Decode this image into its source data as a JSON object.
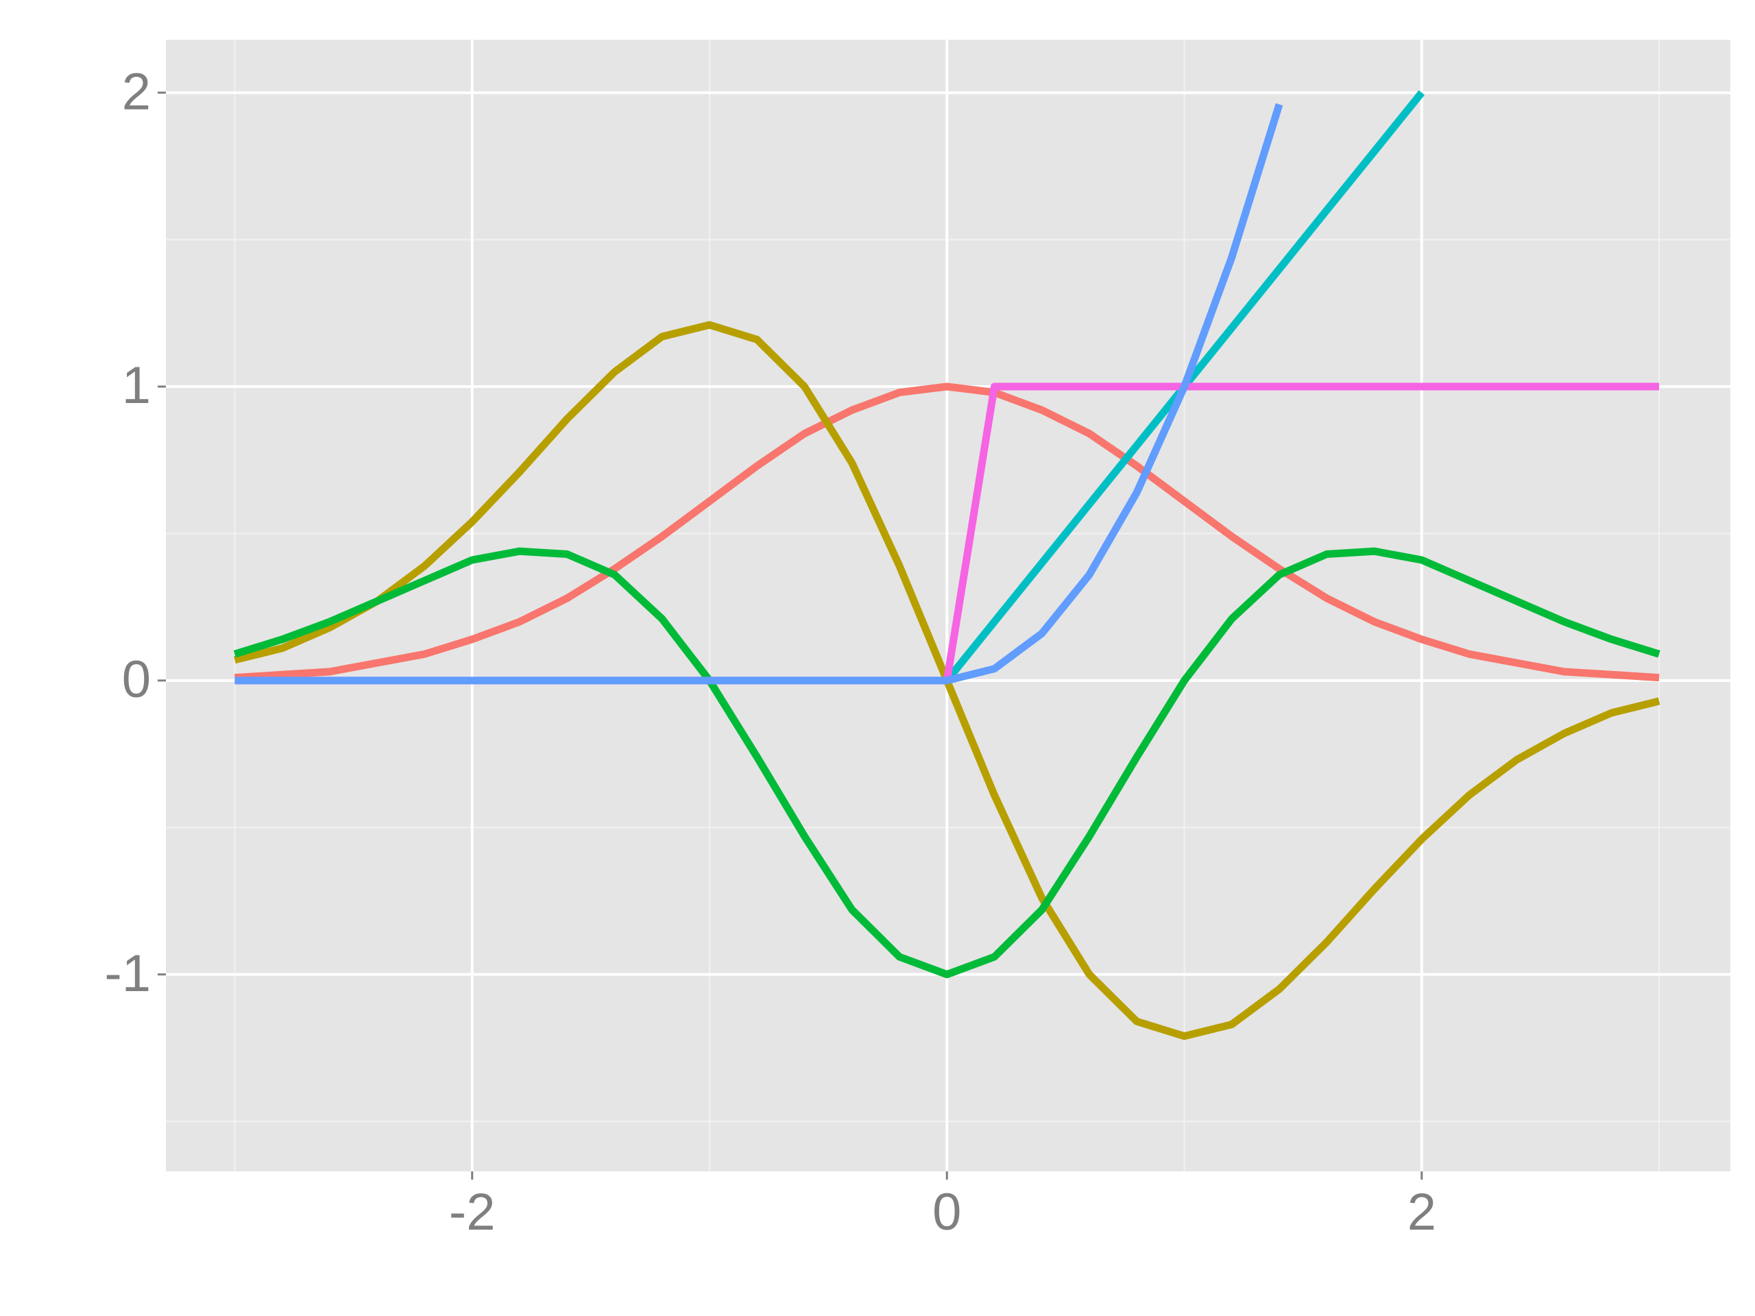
{
  "chart_data": {
    "type": "line",
    "x": [
      -3,
      -2.8,
      -2.6,
      -2.4,
      -2.2,
      -2,
      -1.8,
      -1.6,
      -1.4,
      -1.2,
      -1,
      -0.8,
      -0.6,
      -0.4,
      -0.2,
      0,
      0.2,
      0.4,
      0.6,
      0.8,
      1,
      1.2,
      1.4,
      1.6,
      1.8,
      2,
      2.2,
      2.4,
      2.6,
      2.8,
      3
    ],
    "series": [
      {
        "color": "#F8766D",
        "values": [
          0.01,
          0.02,
          0.03,
          0.06,
          0.09,
          0.14,
          0.2,
          0.28,
          0.38,
          0.49,
          0.61,
          0.73,
          0.84,
          0.92,
          0.98,
          1,
          0.98,
          0.92,
          0.84,
          0.73,
          0.61,
          0.49,
          0.38,
          0.28,
          0.2,
          0.14,
          0.09,
          0.06,
          0.03,
          0.02,
          0.01
        ]
      },
      {
        "color": "#B79F00",
        "values": [
          0.07,
          0.11,
          0.18,
          0.27,
          0.39,
          0.54,
          0.71,
          0.89,
          1.05,
          1.17,
          1.21,
          1.16,
          1,
          0.74,
          0.39,
          0,
          -0.39,
          -0.74,
          -1,
          -1.16,
          -1.21,
          -1.17,
          -1.05,
          -0.89,
          -0.71,
          -0.54,
          -0.39,
          -0.27,
          -0.18,
          -0.11,
          -0.07
        ]
      },
      {
        "color": "#00BA38",
        "values": [
          0.09,
          0.14,
          0.2,
          0.27,
          0.34,
          0.41,
          0.44,
          0.43,
          0.36,
          0.21,
          0,
          -0.26,
          -0.53,
          -0.78,
          -0.94,
          -1,
          -0.94,
          -0.78,
          -0.53,
          -0.26,
          0,
          0.21,
          0.36,
          0.43,
          0.44,
          0.41,
          0.34,
          0.27,
          0.2,
          0.14,
          0.09
        ]
      },
      {
        "color": "#00BFC4",
        "values": [
          null,
          null,
          null,
          null,
          null,
          null,
          null,
          null,
          null,
          null,
          null,
          null,
          null,
          null,
          null,
          0,
          0.2,
          0.4,
          0.6,
          0.8,
          1,
          1.2,
          1.4,
          1.6,
          1.8,
          2,
          null,
          null,
          null,
          null,
          null
        ]
      },
      {
        "color": "#F564E3",
        "values": [
          0,
          0,
          0,
          0,
          0,
          0,
          0,
          0,
          0,
          0,
          0,
          0,
          0,
          0,
          0,
          0,
          1,
          1,
          1,
          1,
          1,
          1,
          1,
          1,
          1,
          1,
          1,
          1,
          1,
          1,
          1
        ]
      },
      {
        "color": "#619CFF",
        "values": [
          0,
          0,
          0,
          0,
          0,
          0,
          0,
          0,
          0,
          0,
          0,
          0,
          0,
          0,
          0,
          0,
          0.04,
          0.16,
          0.36,
          0.64,
          1,
          1.44,
          1.96,
          null,
          null,
          null,
          null,
          null,
          null,
          null,
          null
        ]
      }
    ],
    "xlim": [
      -3.29,
      3.3
    ],
    "ylim": [
      -1.67,
      2.18
    ],
    "xticks": [
      -2,
      0,
      2
    ],
    "yticks": [
      -1,
      0,
      1,
      2
    ],
    "grid": true
  }
}
